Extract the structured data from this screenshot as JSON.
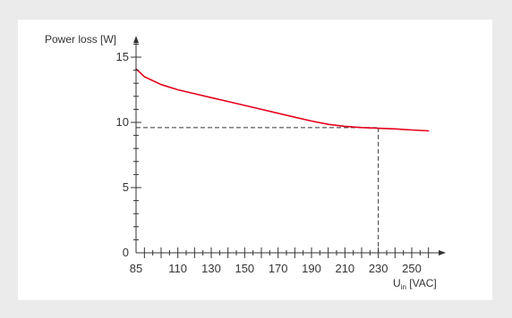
{
  "chart_data": {
    "type": "line",
    "title": "",
    "ylabel": "Power loss [W]",
    "xlabel_main": "U",
    "xlabel_sub": "in",
    "xlabel_unit": " [VAC]",
    "xlim": [
      85,
      265
    ],
    "ylim": [
      0,
      16.5
    ],
    "x_ticks": [
      85,
      110,
      130,
      150,
      170,
      190,
      210,
      230,
      250
    ],
    "y_ticks": [
      0,
      5,
      10,
      15
    ],
    "grid": false,
    "legend": "none",
    "series": [
      {
        "color": "#e3001b",
        "x": [
          85,
          90,
          100,
          110,
          120,
          130,
          140,
          150,
          160,
          170,
          180,
          190,
          200,
          210,
          220,
          230,
          240,
          250,
          260
        ],
        "y": [
          14.1,
          13.5,
          12.9,
          12.5,
          12.2,
          11.9,
          11.6,
          11.3,
          11.0,
          10.7,
          10.4,
          10.1,
          9.85,
          9.7,
          9.6,
          9.55,
          9.5,
          9.42,
          9.35
        ]
      }
    ],
    "reference": {
      "x": 230,
      "y": 9.6
    }
  },
  "colors": {
    "background": "#ebebeb",
    "plot_background": "#ffffff",
    "axis": "#333333",
    "reference_line": "#333333"
  }
}
